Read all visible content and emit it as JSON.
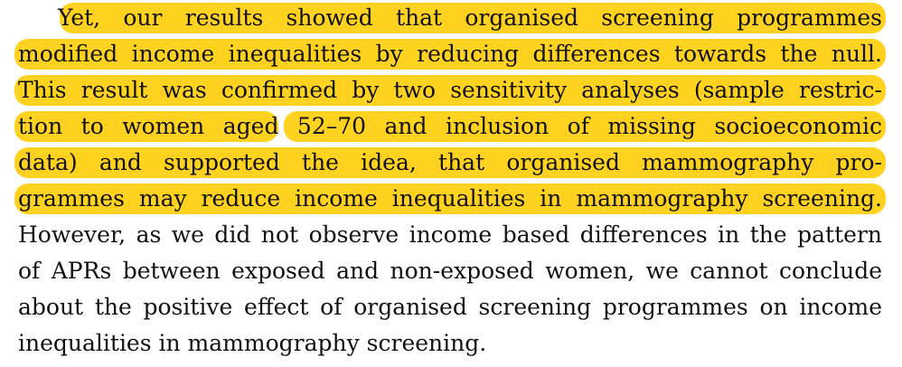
{
  "paragraph": {
    "lines": [
      {
        "text": "Yet, our results showed that organised screening programmes",
        "highlighted": true
      },
      {
        "text": "modified income inequalities by reducing differences towards the null.",
        "highlighted": true
      },
      {
        "text": "This result was confirmed by two sensitivity analyses (sample restric-",
        "highlighted": true
      },
      {
        "text": "tion to women aged 52–70 and inclusion of missing socioeconomic",
        "highlighted": true
      },
      {
        "text": "data) and supported the idea, that organised mammography pro-",
        "highlighted": true
      },
      {
        "text": "grammes may reduce income inequalities in mammography screening.",
        "highlighted": true
      },
      {
        "text": "However, as we did not observe income based differences in the pattern",
        "highlighted": false
      },
      {
        "text": "of APRs between exposed and non-exposed women, we cannot conclude",
        "highlighted": false
      },
      {
        "text": "about the positive effect of organised screening programmes on income",
        "highlighted": false
      },
      {
        "text": "inequalities in mammography screening.",
        "highlighted": false
      }
    ]
  },
  "highlight_color": "#ffd21f"
}
